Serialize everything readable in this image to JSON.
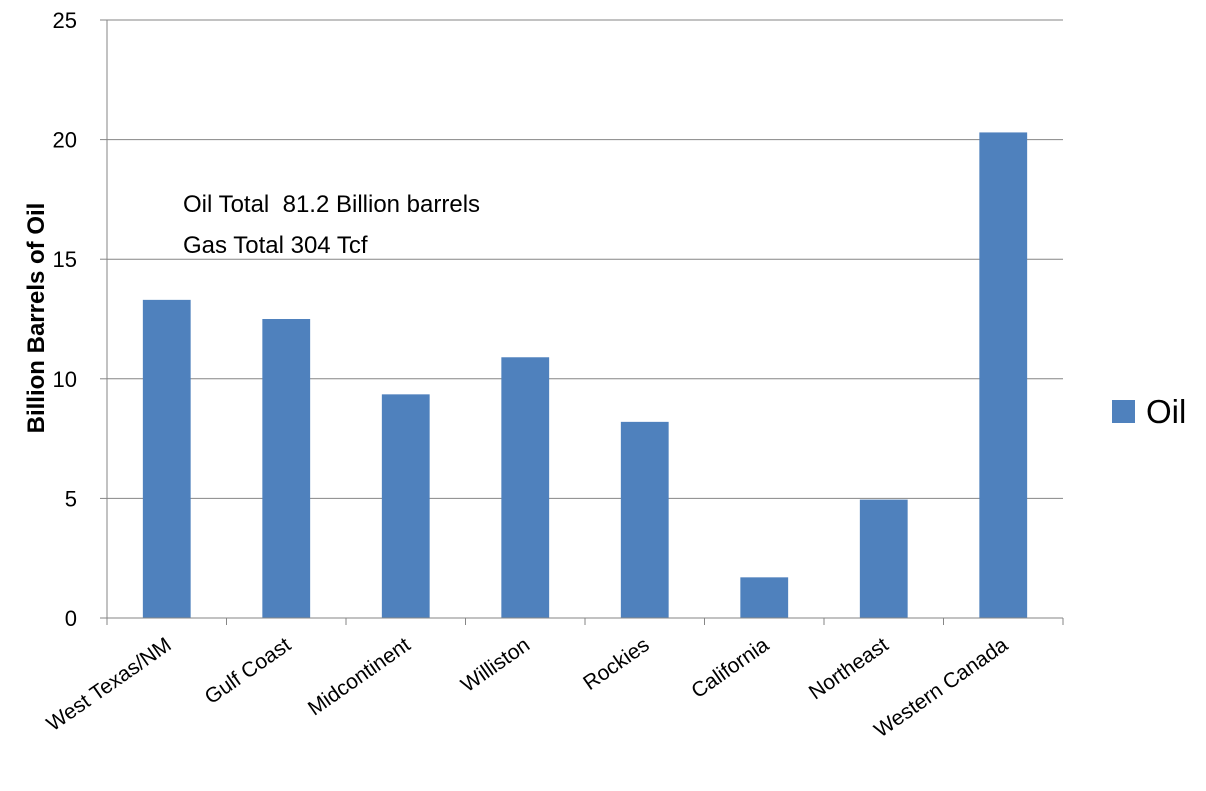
{
  "chart_data": {
    "type": "bar",
    "categories": [
      "West Texas/NM",
      "Gulf Coast",
      "Midcontinent",
      "Williston",
      "Rockies",
      "California",
      "Northeast",
      "Western Canada"
    ],
    "series": [
      {
        "name": "Oil",
        "values": [
          13.3,
          12.5,
          9.35,
          10.9,
          8.2,
          1.7,
          4.95,
          20.3
        ],
        "color": "#4f81bd"
      }
    ],
    "ylabel": "Billion Barrels of Oil",
    "ylim": [
      0,
      25
    ],
    "yticks": [
      0,
      5,
      10,
      15,
      20,
      25
    ],
    "grid": true,
    "legend_position": "right",
    "annotations": [
      "Oil Total  81.2 Billion barrels",
      "Gas Total 304 Tcf"
    ]
  }
}
